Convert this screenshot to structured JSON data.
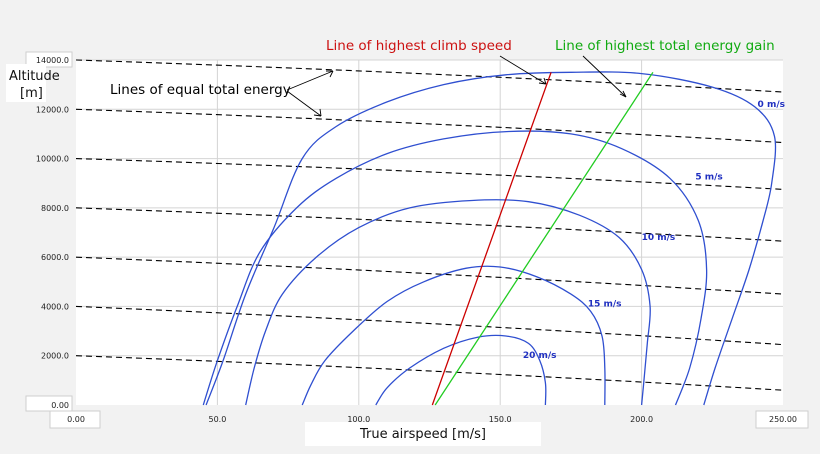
{
  "chart_data": {
    "type": "line",
    "xlabel": "True airspeed [m/s]",
    "ylabel_line1": "Altitude",
    "ylabel_line2": "[m]",
    "xlim": [
      0,
      250
    ],
    "ylim": [
      0,
      14000
    ],
    "x_ticks": [
      "0.00",
      "50.0",
      "100.0",
      "150.0",
      "200.0",
      "250.00"
    ],
    "y_ticks": [
      "0.00",
      "2000.0",
      "4000.0",
      "6000.0",
      "8000.0",
      "10000.0",
      "12000.0",
      "14000.0"
    ],
    "grid": true,
    "climb_rate_contours": [
      {
        "label": "0 m/s",
        "label_at": [
          241,
          12100
        ],
        "points": [
          [
            46,
            0
          ],
          [
            52,
            1800
          ],
          [
            60,
            4500
          ],
          [
            70,
            7200
          ],
          [
            80,
            10000
          ],
          [
            92,
            11300
          ],
          [
            110,
            12300
          ],
          [
            130,
            13000
          ],
          [
            152,
            13400
          ],
          [
            175,
            13500
          ],
          [
            200,
            13450
          ],
          [
            225,
            12900
          ],
          [
            240,
            12100
          ],
          [
            247,
            10900
          ],
          [
            246,
            9000
          ],
          [
            243,
            7500
          ],
          [
            238,
            5500
          ],
          [
            232,
            3500
          ],
          [
            226,
            1500
          ],
          [
            222,
            0
          ]
        ]
      },
      {
        "label": "5 m/s",
        "label_at": [
          219,
          9150
        ],
        "points": [
          [
            45,
            0
          ],
          [
            50,
            1800
          ],
          [
            57,
            4000
          ],
          [
            65,
            6200
          ],
          [
            78,
            8000
          ],
          [
            92,
            9200
          ],
          [
            110,
            10200
          ],
          [
            130,
            10800
          ],
          [
            153,
            11100
          ],
          [
            175,
            11000
          ],
          [
            193,
            10400
          ],
          [
            210,
            9200
          ],
          [
            220,
            7500
          ],
          [
            223,
            5500
          ],
          [
            221,
            3500
          ],
          [
            217,
            1500
          ],
          [
            212,
            0
          ]
        ]
      },
      {
        "label": "10 m/s",
        "label_at": [
          200,
          6700
        ],
        "points": [
          [
            60,
            0
          ],
          [
            63,
            1500
          ],
          [
            67,
            3000
          ],
          [
            73,
            4500
          ],
          [
            85,
            6000
          ],
          [
            100,
            7200
          ],
          [
            118,
            8000
          ],
          [
            140,
            8300
          ],
          [
            160,
            8250
          ],
          [
            178,
            7700
          ],
          [
            192,
            6800
          ],
          [
            200,
            5500
          ],
          [
            203,
            4000
          ],
          [
            202,
            2500
          ],
          [
            201,
            1200
          ],
          [
            200,
            0
          ]
        ]
      },
      {
        "label": "15 m/s",
        "label_at": [
          181,
          4000
        ],
        "points": [
          [
            80,
            0
          ],
          [
            83,
            800
          ],
          [
            88,
            1800
          ],
          [
            98,
            3000
          ],
          [
            110,
            4200
          ],
          [
            123,
            5000
          ],
          [
            138,
            5550
          ],
          [
            150,
            5600
          ],
          [
            163,
            5200
          ],
          [
            175,
            4500
          ],
          [
            182,
            3800
          ],
          [
            186,
            2800
          ],
          [
            187,
            1500
          ],
          [
            187,
            0
          ]
        ]
      },
      {
        "label": "20 m/s",
        "label_at": [
          158,
          1900
        ],
        "points": [
          [
            106,
            0
          ],
          [
            110,
            700
          ],
          [
            118,
            1500
          ],
          [
            130,
            2300
          ],
          [
            142,
            2750
          ],
          [
            152,
            2800
          ],
          [
            160,
            2500
          ],
          [
            164,
            1800
          ],
          [
            166,
            900
          ],
          [
            166,
            0
          ]
        ]
      }
    ],
    "equal_energy_lines": [
      [
        [
          0,
          2000
        ],
        [
          250,
          600
        ]
      ],
      [
        [
          0,
          4000
        ],
        [
          250,
          2450
        ]
      ],
      [
        [
          0,
          6000
        ],
        [
          250,
          4500
        ]
      ],
      [
        [
          0,
          8000
        ],
        [
          250,
          6650
        ]
      ],
      [
        [
          0,
          10000
        ],
        [
          250,
          8750
        ]
      ],
      [
        [
          0,
          12000
        ],
        [
          250,
          10650
        ]
      ],
      [
        [
          0,
          14000
        ],
        [
          250,
          12700
        ]
      ]
    ],
    "highest_climb_speed_line": [
      [
        126,
        0
      ],
      [
        168,
        13500
      ]
    ],
    "highest_energy_gain_line": [
      [
        127,
        0
      ],
      [
        204,
        13500
      ]
    ],
    "annotations": {
      "energy_label": "Lines of equal total energy",
      "climb_label": "Line of highest climb speed",
      "gain_label": "Line of highest total energy gain"
    },
    "colors": {
      "contour": "#2f4fd0",
      "climb_line": "#cc0000",
      "gain_line": "#22cc22",
      "climb_text": "#cc1111",
      "gain_text": "#11aa11",
      "energy_lines": "#000000"
    }
  }
}
